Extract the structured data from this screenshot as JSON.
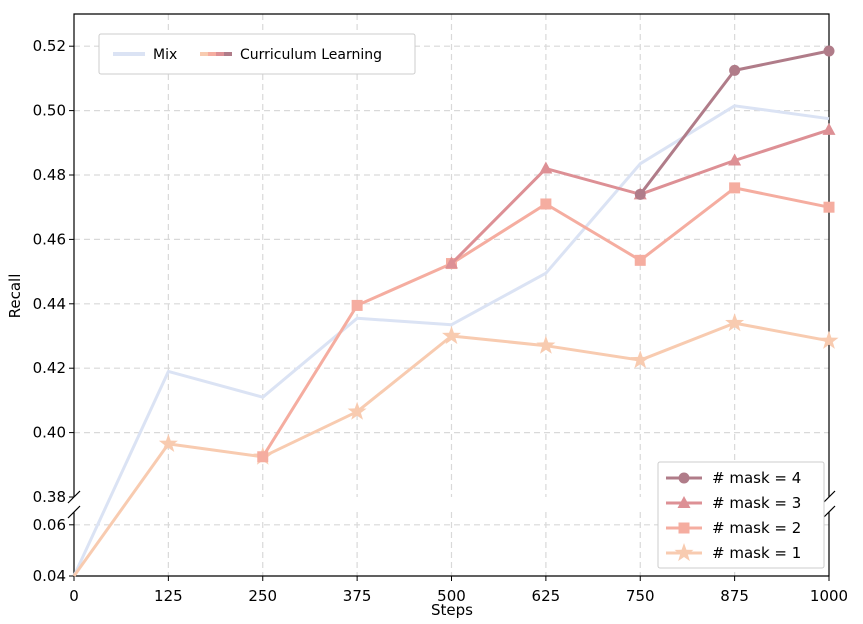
{
  "chart_data": {
    "type": "line",
    "xlabel": "Steps",
    "ylabel": "Recall",
    "x": [
      0,
      125,
      250,
      375,
      500,
      625,
      750,
      875,
      1000
    ],
    "x_ticks": [
      "0",
      "125",
      "250",
      "375",
      "500",
      "625",
      "750",
      "875",
      "1000"
    ],
    "broken_y_axis": true,
    "upper_ylim": [
      0.38,
      0.53
    ],
    "upper_yticks": [
      "0.38",
      "0.40",
      "0.42",
      "0.44",
      "0.46",
      "0.48",
      "0.50",
      "0.52"
    ],
    "lower_ylim": [
      0.04,
      0.065
    ],
    "lower_yticks": [
      "0.04",
      "0.06"
    ],
    "grid": true,
    "legends": [
      {
        "placement": "top-left",
        "entries": [
          "Mix",
          "Curriculum Learning"
        ]
      },
      {
        "placement": "bottom-right",
        "entries": [
          "# mask = 4",
          "# mask = 3",
          "# mask = 2",
          "# mask = 1"
        ]
      }
    ],
    "series": [
      {
        "name": "Mix",
        "color": "#dbe3f4",
        "marker": "none",
        "values": [
          0.04,
          0.419,
          0.411,
          0.4355,
          0.4335,
          0.4495,
          0.4835,
          0.5015,
          0.4975
        ]
      },
      {
        "name": "# mask = 4",
        "color": "#b07c89",
        "marker": "circle",
        "values": [
          null,
          null,
          null,
          null,
          null,
          null,
          0.474,
          0.5125,
          0.5185
        ]
      },
      {
        "name": "# mask = 3",
        "color": "#dd9095",
        "marker": "triangle",
        "values": [
          null,
          null,
          null,
          null,
          0.4525,
          0.482,
          0.474,
          0.4845,
          0.494
        ]
      },
      {
        "name": "# mask = 2",
        "color": "#f5ada0",
        "marker": "square",
        "values": [
          null,
          null,
          0.3925,
          0.4395,
          0.4525,
          0.471,
          0.4535,
          0.476,
          0.47
        ]
      },
      {
        "name": "# mask = 1",
        "color": "#f8cbb0",
        "marker": "star",
        "values": [
          0.04,
          0.3965,
          0.3925,
          0.4065,
          0.43,
          0.427,
          0.4225,
          0.434,
          0.4285
        ]
      }
    ]
  }
}
